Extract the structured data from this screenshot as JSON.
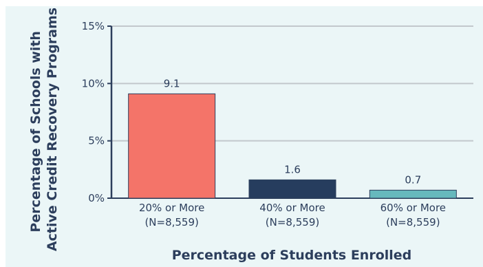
{
  "chart_data": {
    "type": "bar",
    "categories": [
      [
        "20% or More",
        "(N=8,559)"
      ],
      [
        "40% or More",
        "(N=8,559)"
      ],
      [
        "60% or More",
        "(N=8,559)"
      ]
    ],
    "values": [
      9.1,
      1.6,
      0.7
    ],
    "value_labels": [
      "9.1",
      "1.6",
      "0.7"
    ],
    "bar_colors": [
      "#f47469",
      "#263d5e",
      "#67b9bd"
    ],
    "xlabel": "Percentage of Students Enrolled",
    "ylabel_lines": [
      "Percentage of Schools with",
      "Active Credit Recovery Programs"
    ],
    "ylim": [
      0,
      15
    ],
    "yticks": [
      {
        "value": 0,
        "label": "0%"
      },
      {
        "value": 5,
        "label": "5%"
      },
      {
        "value": 10,
        "label": "10%"
      },
      {
        "value": 15,
        "label": "15%"
      }
    ],
    "grid": true,
    "colors": {
      "panel": "#ebf6f7",
      "grid": "#c2c8cc",
      "axis": "#2c3e5c",
      "text": "#2c3e5c"
    }
  }
}
